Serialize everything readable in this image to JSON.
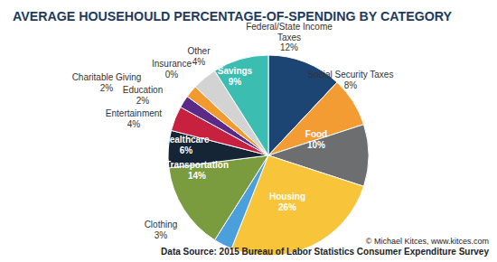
{
  "chart_data": {
    "type": "pie",
    "title": "AVERAGE HOUSEHOULD PERCENTAGE-OF-SPENDING BY CATEGORY",
    "categories": [
      "Federal/State Income Taxes",
      "Social Security Taxes",
      "Food",
      "Housing",
      "Clothing",
      "Transportation",
      "Healthcare",
      "Entertainment",
      "Education",
      "Charitable Giving",
      "Insurance",
      "Other",
      "Savings"
    ],
    "values": [
      12,
      8,
      10,
      26,
      3,
      14,
      6,
      4,
      2,
      2,
      0,
      4,
      9
    ],
    "value_labels": [
      "12%",
      "8%",
      "10%",
      "26%",
      "3%",
      "14%",
      "6%",
      "4%",
      "2%",
      "2%",
      "0%",
      "4%",
      "9%"
    ],
    "colors": [
      "#1d4573",
      "#f39c33",
      "#6d6e70",
      "#f8c53a",
      "#4a9fdc",
      "#7a9b3e",
      "#152535",
      "#c8203f",
      "#5b2a86",
      "#f29a2e",
      "#b0b0b0",
      "#d3d3d3",
      "#3bbdb1"
    ],
    "data_labels": true,
    "annotations": [
      "© Michael Kitces, www.kitces.com",
      "Data Source: 2015 Bureau of Labor Statistics Consumer Expenditure Survey"
    ]
  }
}
